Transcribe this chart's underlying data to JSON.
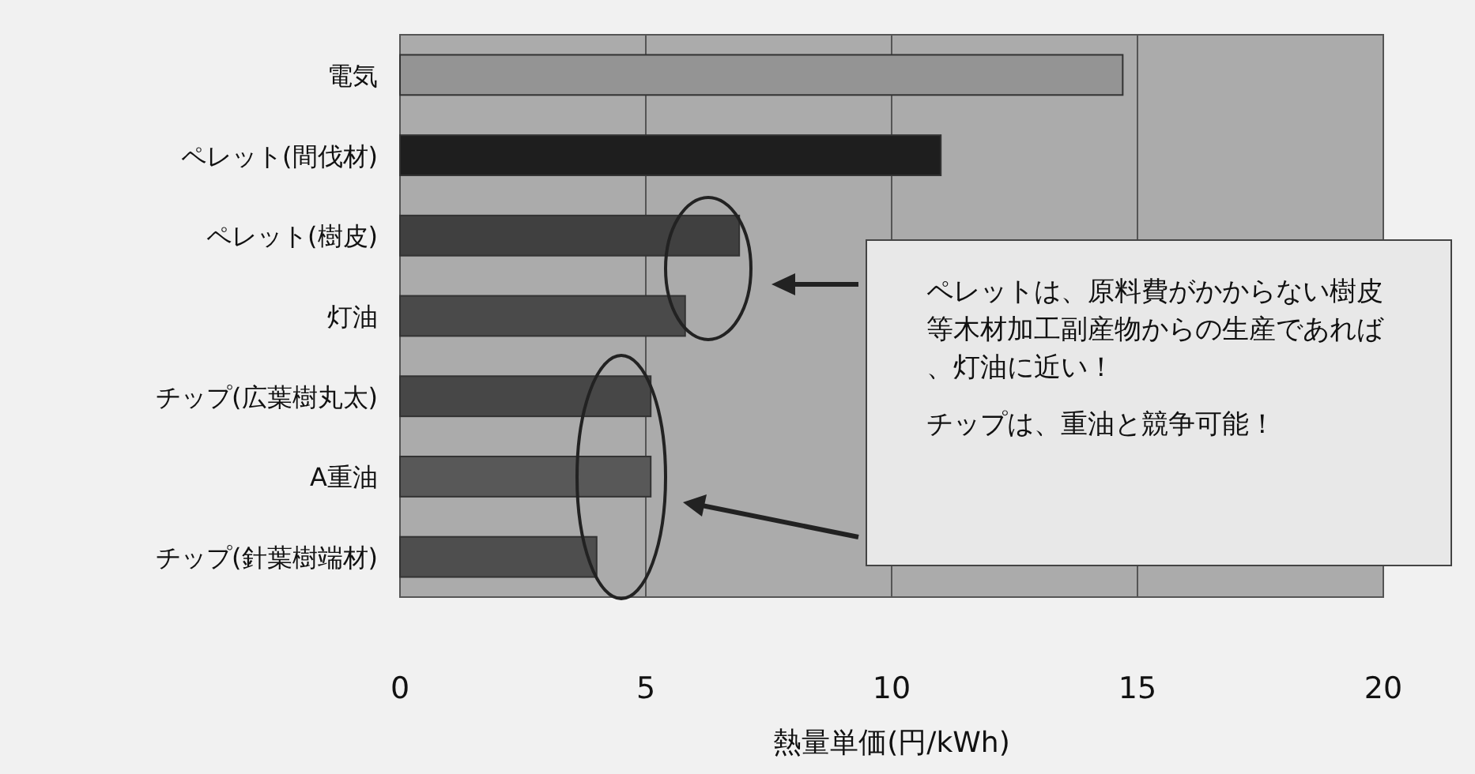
{
  "chart_data": {
    "type": "bar",
    "orientation": "horizontal",
    "xlabel": "熱量単価(円/kWh)",
    "categories": [
      "電気",
      "ペレット(間伐材)",
      "ペレット(樹皮)",
      "灯油",
      "チップ(広葉樹丸太)",
      "A重油",
      "チップ(針葉樹端材)"
    ],
    "values": [
      14.7,
      11.0,
      6.9,
      5.8,
      5.1,
      5.1,
      4.0
    ],
    "colors": [
      "#949494",
      "#1e1e1e",
      "#404040",
      "#4a4a4a",
      "#474747",
      "#585858",
      "#4e4e4e"
    ],
    "xlim": [
      0,
      20
    ],
    "xticks": [
      0,
      5,
      10,
      15,
      20
    ],
    "grid": "x",
    "annotations": [
      "ペレットは、原料費がかからない樹皮等木材加工副産物からの生産であれば、灯油に近い！",
      "チップは、重油と競争可能！"
    ]
  }
}
